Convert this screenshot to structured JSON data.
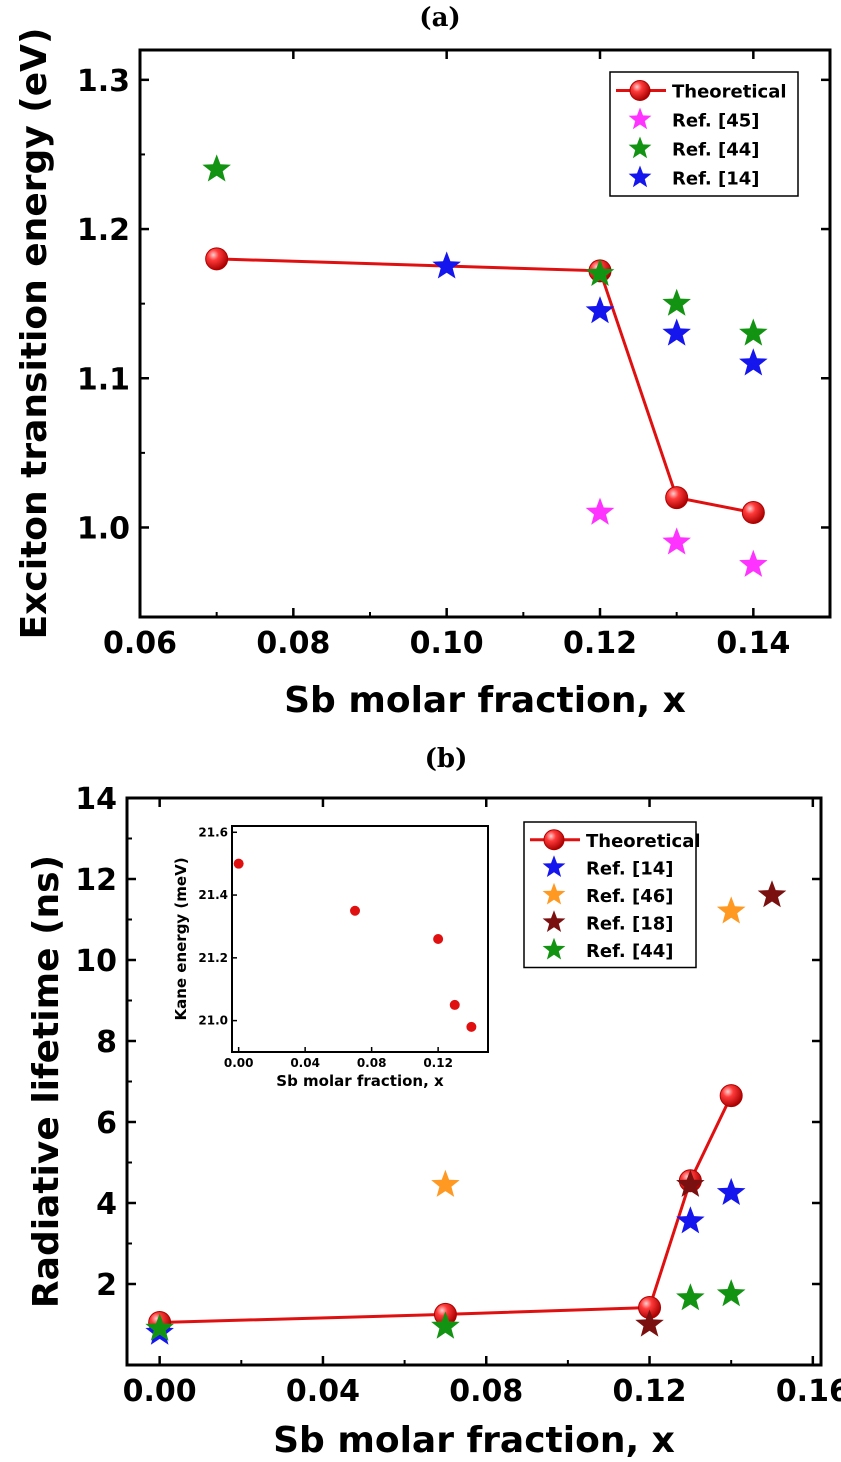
{
  "chart_data": [
    {
      "panel": "(a)",
      "type": "scatter",
      "xlabel": "Sb molar fraction, x",
      "ylabel": "Exciton transition energy (eV)",
      "xlim": [
        0.06,
        0.15
      ],
      "ylim": [
        0.94,
        1.32
      ],
      "xticks": [
        0.06,
        0.08,
        0.1,
        0.12,
        0.14
      ],
      "xtick_labels": [
        "0.06",
        "0.08",
        "0.10",
        "0.12",
        "0.14"
      ],
      "yticks": [
        1.0,
        1.1,
        1.2,
        1.3
      ],
      "ytick_labels": [
        "1.0",
        "1.1",
        "1.2",
        "1.3"
      ],
      "legend_position": "top-right",
      "series": [
        {
          "name": "Theoretical",
          "marker": "sphere-line",
          "color": "#e01010",
          "x": [
            0.07,
            0.12,
            0.13,
            0.14
          ],
          "y": [
            1.18,
            1.172,
            1.02,
            1.01
          ]
        },
        {
          "name": "Ref. [45]",
          "marker": "star",
          "color": "#ff33ff",
          "x": [
            0.12,
            0.13,
            0.14
          ],
          "y": [
            1.01,
            0.99,
            0.975
          ]
        },
        {
          "name": "Ref. [44]",
          "marker": "star",
          "color": "#129312",
          "x": [
            0.07,
            0.12,
            0.13,
            0.14
          ],
          "y": [
            1.24,
            1.17,
            1.15,
            1.13
          ]
        },
        {
          "name": "Ref. [14]",
          "marker": "star",
          "color": "#1515ee",
          "x": [
            0.1,
            0.12,
            0.13,
            0.14
          ],
          "y": [
            1.175,
            1.145,
            1.13,
            1.11
          ]
        }
      ]
    },
    {
      "panel": "(b)",
      "type": "scatter",
      "xlabel": "Sb molar fraction, x",
      "ylabel": "Radiative lifetime (ns)",
      "xlim": [
        -0.008,
        0.162
      ],
      "ylim": [
        0,
        14
      ],
      "xticks": [
        0.0,
        0.04,
        0.08,
        0.12,
        0.16
      ],
      "xtick_labels": [
        "0.00",
        "0.04",
        "0.08",
        "0.12",
        "0.16"
      ],
      "yticks": [
        2,
        4,
        6,
        8,
        10,
        12,
        14
      ],
      "ytick_labels": [
        "2",
        "4",
        "6",
        "8",
        "10",
        "12",
        "14"
      ],
      "legend_position": "top-right",
      "series": [
        {
          "name": "Theoretical",
          "marker": "sphere-line",
          "color": "#e01010",
          "x": [
            0.0,
            0.07,
            0.12,
            0.13,
            0.14
          ],
          "y": [
            1.05,
            1.25,
            1.42,
            4.55,
            6.65
          ]
        },
        {
          "name": "Ref. [14]",
          "marker": "star",
          "color": "#1515ee",
          "x": [
            0.0,
            0.13,
            0.14
          ],
          "y": [
            0.8,
            3.55,
            4.25
          ]
        },
        {
          "name": "Ref. [46]",
          "marker": "star",
          "color": "#ff9922",
          "x": [
            0.07,
            0.14
          ],
          "y": [
            4.45,
            11.2
          ]
        },
        {
          "name": "Ref. [18]",
          "marker": "star",
          "color": "#7a1010",
          "x": [
            0.12,
            0.13,
            0.15
          ],
          "y": [
            1.0,
            4.45,
            11.6
          ]
        },
        {
          "name": "Ref. [44]",
          "marker": "star",
          "color": "#129312",
          "x": [
            0.0,
            0.07,
            0.13,
            0.14
          ],
          "y": [
            0.9,
            0.95,
            1.65,
            1.75
          ]
        }
      ],
      "inset": {
        "type": "scatter",
        "xlabel": "Sb molar fraction, x",
        "ylabel": "Kane energy (meV)",
        "xlim": [
          -0.004,
          0.15
        ],
        "ylim": [
          20.9,
          21.62
        ],
        "xticks": [
          0.0,
          0.04,
          0.08,
          0.12
        ],
        "xtick_labels": [
          "0.00",
          "0.04",
          "0.08",
          "0.12"
        ],
        "yticks": [
          21.0,
          21.2,
          21.4,
          21.6
        ],
        "ytick_labels": [
          "21.0",
          "21.2",
          "21.4",
          "21.6"
        ],
        "color": "#e01010",
        "x": [
          0.0,
          0.07,
          0.12,
          0.13,
          0.14
        ],
        "y": [
          21.5,
          21.35,
          21.26,
          21.05,
          20.98
        ]
      }
    }
  ]
}
